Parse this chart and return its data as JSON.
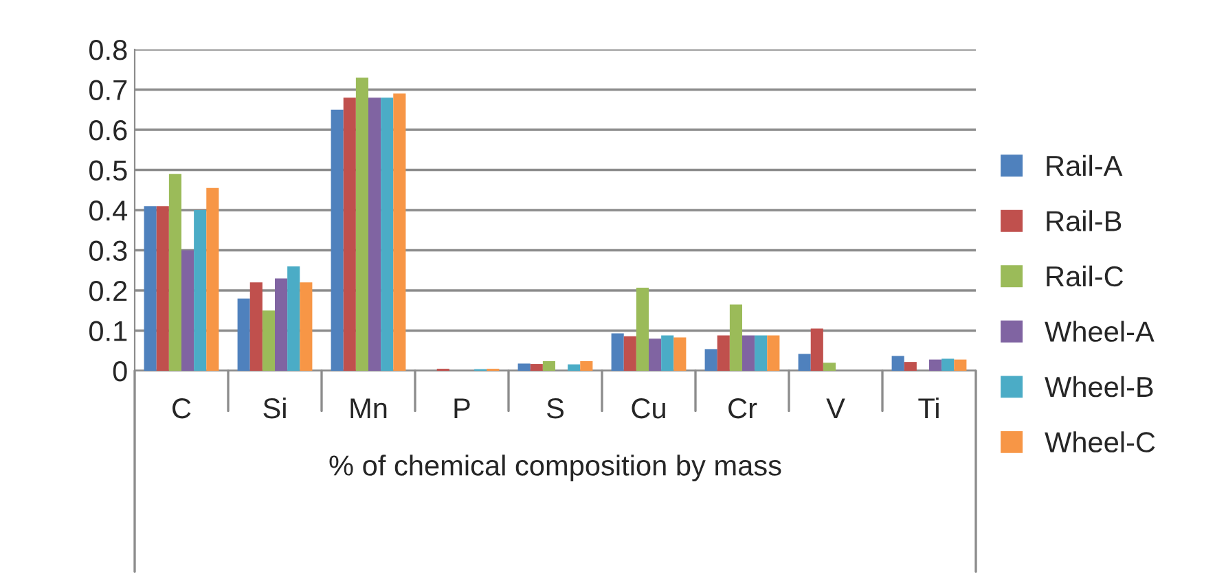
{
  "chart_data": {
    "type": "bar",
    "xlabel": "% of chemical composition by mass",
    "categories": [
      "C",
      "Si",
      "Mn",
      "P",
      "S",
      "Cu",
      "Cr",
      "V",
      "Ti"
    ],
    "series": [
      {
        "name": "Rail-A",
        "color": "#4f81bd",
        "values": [
          0.41,
          0.18,
          0.65,
          0,
          0.018,
          0.093,
          0.054,
          0.042,
          0.037
        ]
      },
      {
        "name": "Rail-B",
        "color": "#c0504d",
        "values": [
          0.41,
          0.22,
          0.68,
          0.005,
          0.017,
          0.086,
          0.088,
          0.105,
          0.022
        ]
      },
      {
        "name": "Rail-C",
        "color": "#9bbb59",
        "values": [
          0.49,
          0.15,
          0.73,
          0,
          0.024,
          0.207,
          0.165,
          0.02,
          0
        ]
      },
      {
        "name": "Wheel-A",
        "color": "#8064a2",
        "values": [
          0.3,
          0.23,
          0.68,
          null,
          null,
          0.08,
          0.088,
          0,
          0.028
        ]
      },
      {
        "name": "Wheel-B",
        "color": "#4bacc6",
        "values": [
          0.4,
          0.26,
          0.68,
          0.004,
          0.016,
          0.088,
          0.088,
          0,
          0.03
        ]
      },
      {
        "name": "Wheel-C",
        "color": "#f79646",
        "values": [
          0.455,
          0.22,
          0.69,
          0.005,
          0.024,
          0.083,
          0.088,
          0,
          0.028
        ]
      }
    ],
    "ylim": [
      0,
      0.8
    ],
    "yticks": [
      0,
      0.1,
      0.2,
      0.3,
      0.4,
      0.5,
      0.6,
      0.7,
      0.8
    ],
    "grid": "y",
    "legend": "right"
  }
}
